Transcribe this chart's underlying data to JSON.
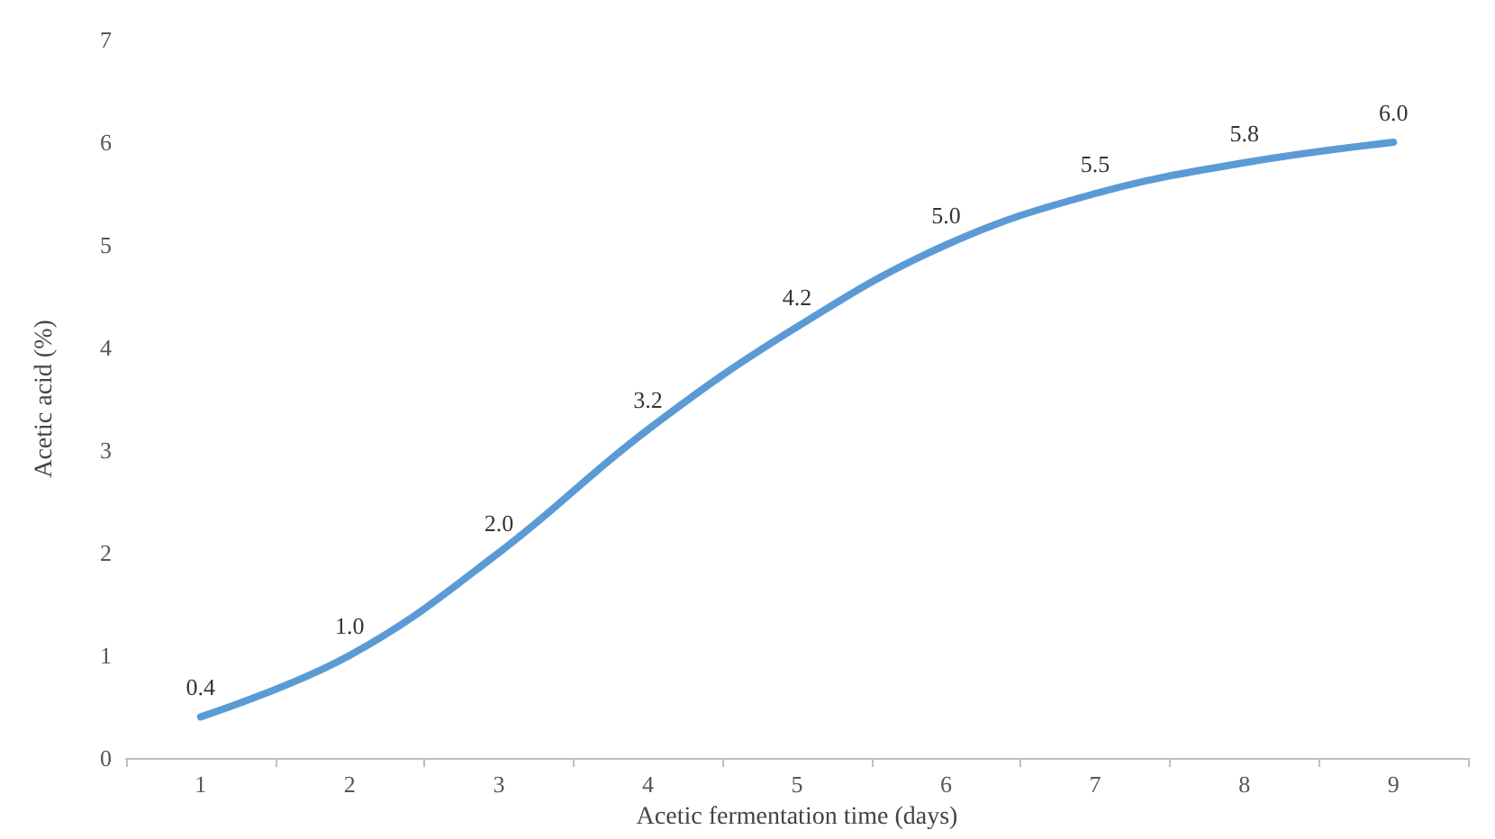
{
  "chart_data": {
    "type": "line",
    "xlabel": "Acetic fermentation time (days)",
    "ylabel": "Acetic acid (%)",
    "categories": [
      "1",
      "2",
      "3",
      "4",
      "5",
      "6",
      "7",
      "8",
      "9"
    ],
    "series": [
      {
        "color": "#5b9bd5",
        "values": [
          0.4,
          1.0,
          2.0,
          3.2,
          4.2,
          5.0,
          5.5,
          5.8,
          6.0
        ],
        "value_labels": [
          "0.4",
          "1.0",
          "2.0",
          "3.2",
          "4.2",
          "5.0",
          "5.5",
          "5.8",
          "6.0"
        ]
      }
    ],
    "ylim": [
      0,
      7
    ],
    "yticks": [
      0,
      1,
      2,
      3,
      4,
      5,
      6,
      7
    ],
    "grid": false,
    "marker": "none",
    "line_style": "solid"
  }
}
